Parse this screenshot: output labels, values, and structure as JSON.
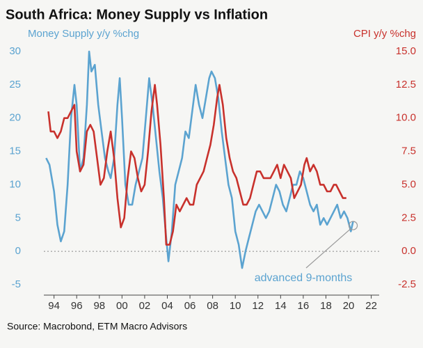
{
  "chart_data": {
    "type": "line",
    "title": "South Africa: Money Supply vs Inflation",
    "y_label": "Money Supply y/y %chg",
    "y2_label": "CPI y/y %chg",
    "source": "Source: Macrobond, ETM Macro Advisors",
    "annotation": "advanced 9-months",
    "xlim": [
      1993.1,
      2022.7
    ],
    "xticks": [
      {
        "value": 1994,
        "label": "94"
      },
      {
        "value": 1996,
        "label": "96"
      },
      {
        "value": 1998,
        "label": "98"
      },
      {
        "value": 2000,
        "label": "00"
      },
      {
        "value": 2002,
        "label": "02"
      },
      {
        "value": 2004,
        "label": "04"
      },
      {
        "value": 2006,
        "label": "06"
      },
      {
        "value": 2008,
        "label": "08"
      },
      {
        "value": 2010,
        "label": "10"
      },
      {
        "value": 2012,
        "label": "12"
      },
      {
        "value": 2014,
        "label": "14"
      },
      {
        "value": 2016,
        "label": "16"
      },
      {
        "value": 2018,
        "label": "18"
      },
      {
        "value": 2020,
        "label": "20"
      },
      {
        "value": 2022,
        "label": "22"
      }
    ],
    "ylim": [
      -5,
      30
    ],
    "yticks": [
      -5,
      0,
      5,
      10,
      15,
      20,
      25,
      30
    ],
    "y2lim": [
      -2.5,
      15
    ],
    "y2ticks": [
      -2.5,
      {
        "value": 0,
        "label": "0.0"
      },
      2.5,
      {
        "value": 5,
        "label": "5.0"
      },
      7.5,
      {
        "value": 10,
        "label": "10.0"
      },
      12.5,
      {
        "value": 15,
        "label": "15.0"
      }
    ],
    "zero_line": 0,
    "series": [
      {
        "name": "Money Supply y/y %chg",
        "color": "#5ba3d0",
        "axis": "y",
        "x": [
          1993.3,
          1993.6,
          1994.0,
          1994.3,
          1994.6,
          1994.9,
          1995.2,
          1995.5,
          1995.8,
          1996.0,
          1996.3,
          1996.6,
          1996.9,
          1997.1,
          1997.3,
          1997.6,
          1997.9,
          1998.2,
          1998.5,
          1998.8,
          1999.0,
          1999.3,
          1999.6,
          1999.8,
          2000.0,
          2000.3,
          2000.6,
          2000.9,
          2001.2,
          2001.5,
          2001.8,
          2002.1,
          2002.4,
          2002.7,
          2003.0,
          2003.3,
          2003.6,
          2003.9,
          2004.1,
          2004.4,
          2004.7,
          2005.0,
          2005.3,
          2005.6,
          2005.9,
          2006.2,
          2006.5,
          2006.8,
          2007.1,
          2007.4,
          2007.7,
          2007.9,
          2008.2,
          2008.5,
          2008.8,
          2009.1,
          2009.4,
          2009.7,
          2010.0,
          2010.3,
          2010.6,
          2010.9,
          2011.2,
          2011.5,
          2011.8,
          2012.1,
          2012.4,
          2012.7,
          2013.0,
          2013.3,
          2013.6,
          2013.9,
          2014.2,
          2014.5,
          2014.8,
          2015.1,
          2015.4,
          2015.7,
          2016.0,
          2016.3,
          2016.6,
          2016.9,
          2017.2,
          2017.5,
          2017.8,
          2018.1,
          2018.4,
          2018.7,
          2019.0,
          2019.3,
          2019.6,
          2019.9,
          2020.2,
          2020.4
        ],
        "values": [
          14,
          13,
          9,
          4,
          1.5,
          3,
          10,
          20,
          25,
          22,
          12,
          14,
          22,
          30,
          27,
          28,
          22,
          18,
          14,
          12,
          11,
          14,
          22,
          26,
          20,
          10,
          7,
          7,
          10,
          12,
          14,
          20,
          26,
          22,
          17,
          12,
          8,
          2,
          -1.5,
          3,
          10,
          12,
          14,
          18,
          17,
          21,
          25,
          22,
          20,
          23,
          26,
          27,
          26,
          23,
          18,
          14,
          10,
          8,
          3,
          1,
          -2.5,
          0,
          2,
          4,
          6,
          7,
          6,
          5,
          6,
          8,
          10,
          9,
          7,
          6,
          8,
          10,
          10,
          12,
          11,
          9,
          7,
          6,
          7,
          4,
          5,
          4,
          5,
          6,
          7,
          5,
          6,
          5,
          3,
          4.5
        ]
      },
      {
        "name": "CPI y/y %chg",
        "color": "#c8312c",
        "axis": "y2",
        "x": [
          1993.5,
          1993.7,
          1994.0,
          1994.3,
          1994.6,
          1994.9,
          1995.2,
          1995.5,
          1995.8,
          1996.0,
          1996.3,
          1996.6,
          1996.9,
          1997.2,
          1997.5,
          1997.8,
          1998.1,
          1998.4,
          1998.7,
          1999.0,
          1999.3,
          1999.6,
          1999.9,
          2000.2,
          2000.5,
          2000.8,
          2001.1,
          2001.4,
          2001.7,
          2002.0,
          2002.3,
          2002.6,
          2002.9,
          2003.1,
          2003.4,
          2003.7,
          2003.9,
          2004.2,
          2004.5,
          2004.8,
          2005.1,
          2005.4,
          2005.7,
          2006.0,
          2006.3,
          2006.6,
          2006.9,
          2007.2,
          2007.5,
          2007.8,
          2008.1,
          2008.4,
          2008.6,
          2008.9,
          2009.2,
          2009.5,
          2009.8,
          2010.1,
          2010.4,
          2010.7,
          2011.0,
          2011.3,
          2011.6,
          2011.9,
          2012.2,
          2012.5,
          2012.8,
          2013.1,
          2013.4,
          2013.7,
          2014.0,
          2014.3,
          2014.6,
          2014.9,
          2015.2,
          2015.5,
          2015.8,
          2016.1,
          2016.3,
          2016.6,
          2016.9,
          2017.2,
          2017.5,
          2017.8,
          2018.1,
          2018.4,
          2018.7,
          2018.9,
          2019.2,
          2019.5,
          2019.8
        ],
        "values": [
          10.5,
          9.0,
          9.0,
          8.5,
          9.0,
          10.0,
          10.0,
          10.5,
          11.0,
          7.5,
          6.0,
          6.5,
          9.0,
          9.5,
          9.0,
          7.0,
          5.0,
          5.5,
          7.5,
          9.0,
          7.0,
          4.0,
          1.8,
          2.5,
          5.5,
          7.5,
          7.0,
          5.5,
          4.5,
          5.0,
          7.5,
          10.5,
          12.5,
          11.0,
          8.0,
          4.0,
          0.5,
          0.5,
          1.5,
          3.5,
          3.0,
          3.5,
          4.0,
          3.5,
          3.5,
          5.0,
          5.5,
          6.0,
          7.0,
          8.0,
          9.5,
          11.5,
          12.5,
          11.0,
          8.5,
          7.0,
          6.0,
          5.5,
          4.5,
          3.5,
          3.5,
          4.0,
          5.0,
          6.0,
          6.0,
          5.5,
          5.5,
          5.5,
          6.0,
          6.5,
          5.5,
          6.5,
          6.0,
          5.5,
          4.0,
          4.5,
          5.0,
          6.5,
          7.0,
          6.0,
          6.5,
          6.0,
          5.0,
          5.0,
          4.5,
          4.5,
          5.0,
          5.0,
          4.5,
          4.0,
          4.0
        ]
      }
    ]
  }
}
